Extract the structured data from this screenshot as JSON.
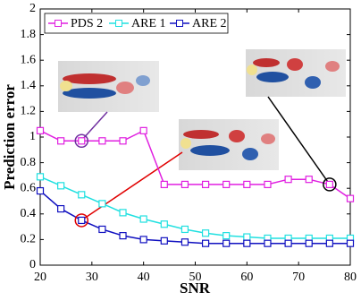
{
  "chart_data": {
    "type": "line",
    "x_label": "SNR",
    "y_label": "Prediction error",
    "x": [
      20,
      24,
      28,
      32,
      36,
      40,
      44,
      48,
      52,
      56,
      60,
      64,
      68,
      72,
      76,
      80
    ],
    "series": [
      {
        "name": "PDS 2",
        "color": "#e020e0",
        "values": [
          1.05,
          0.97,
          0.97,
          0.97,
          0.97,
          1.05,
          0.63,
          0.63,
          0.63,
          0.63,
          0.63,
          0.63,
          0.67,
          0.67,
          0.63,
          0.52
        ]
      },
      {
        "name": "ARE 1",
        "color": "#20e0e0",
        "values": [
          0.69,
          0.62,
          0.55,
          0.48,
          0.41,
          0.36,
          0.32,
          0.28,
          0.25,
          0.23,
          0.22,
          0.21,
          0.21,
          0.21,
          0.21,
          0.21
        ]
      },
      {
        "name": "ARE 2",
        "color": "#1010c0",
        "values": [
          0.58,
          0.44,
          0.35,
          0.28,
          0.23,
          0.2,
          0.19,
          0.18,
          0.17,
          0.17,
          0.17,
          0.17,
          0.17,
          0.17,
          0.17,
          0.17
        ]
      }
    ],
    "xlim": [
      20,
      80
    ],
    "xticks": [
      20,
      30,
      40,
      50,
      60,
      70,
      80
    ],
    "ylim": [
      0,
      2
    ],
    "yticks": [
      0,
      0.2,
      0.4,
      0.6,
      0.8,
      1,
      1.2,
      1.4,
      1.6,
      1.8,
      2
    ],
    "legend": "top-left"
  }
}
